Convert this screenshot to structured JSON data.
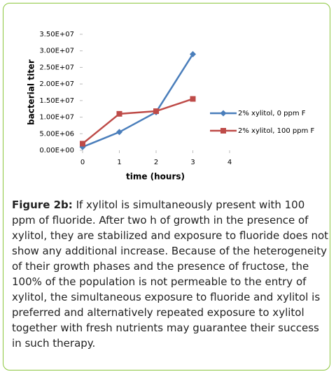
{
  "chart_data": {
    "type": "line",
    "x_label": "time (hours)",
    "y_label": "bacterial titer",
    "x": [
      0,
      1,
      2,
      3
    ],
    "xlim": [
      0,
      4
    ],
    "xticks": [
      0,
      1,
      2,
      3,
      4
    ],
    "ylim": [
      0,
      35000000
    ],
    "yticks": [
      {
        "value": 0,
        "label": "0.00E+00"
      },
      {
        "value": 5000000,
        "label": "5.00E+06"
      },
      {
        "value": 10000000,
        "label": "1.00E+07"
      },
      {
        "value": 15000000,
        "label": "1.50E+07"
      },
      {
        "value": 20000000,
        "label": "2.00E+07"
      },
      {
        "value": 25000000,
        "label": "2.50E+07"
      },
      {
        "value": 30000000,
        "label": "3.00E+07"
      },
      {
        "value": 35000000,
        "label": "3.50E+07"
      }
    ],
    "legend": "right",
    "series": [
      {
        "name": "2% xylitol, 0 ppm F",
        "color": "#4a7ebb",
        "marker": "diamond",
        "values": [
          1000000,
          5500000,
          11500000,
          29000000
        ]
      },
      {
        "name": "2% xylitol, 100 ppm F",
        "color": "#be4b48",
        "marker": "square",
        "values": [
          2000000,
          11000000,
          11800000,
          15500000
        ]
      }
    ]
  },
  "caption": {
    "label": "Figure 2b:",
    "text": "If xylitol is simultaneously present with 100 ppm of fluoride. After two h of growth in the presence of xylitol, they are stabilized and exposure to fluoride does not show any additional increase. Because of the heterogeneity of their growth phases and the presence of fructose, the 100% of the population is not permeable to the entry of xylitol, the simultaneous exposure to fluoride and xylitol is preferred and alternatively repeated exposure to xylitol together with fresh nutrients may guarantee their success in such therapy."
  }
}
